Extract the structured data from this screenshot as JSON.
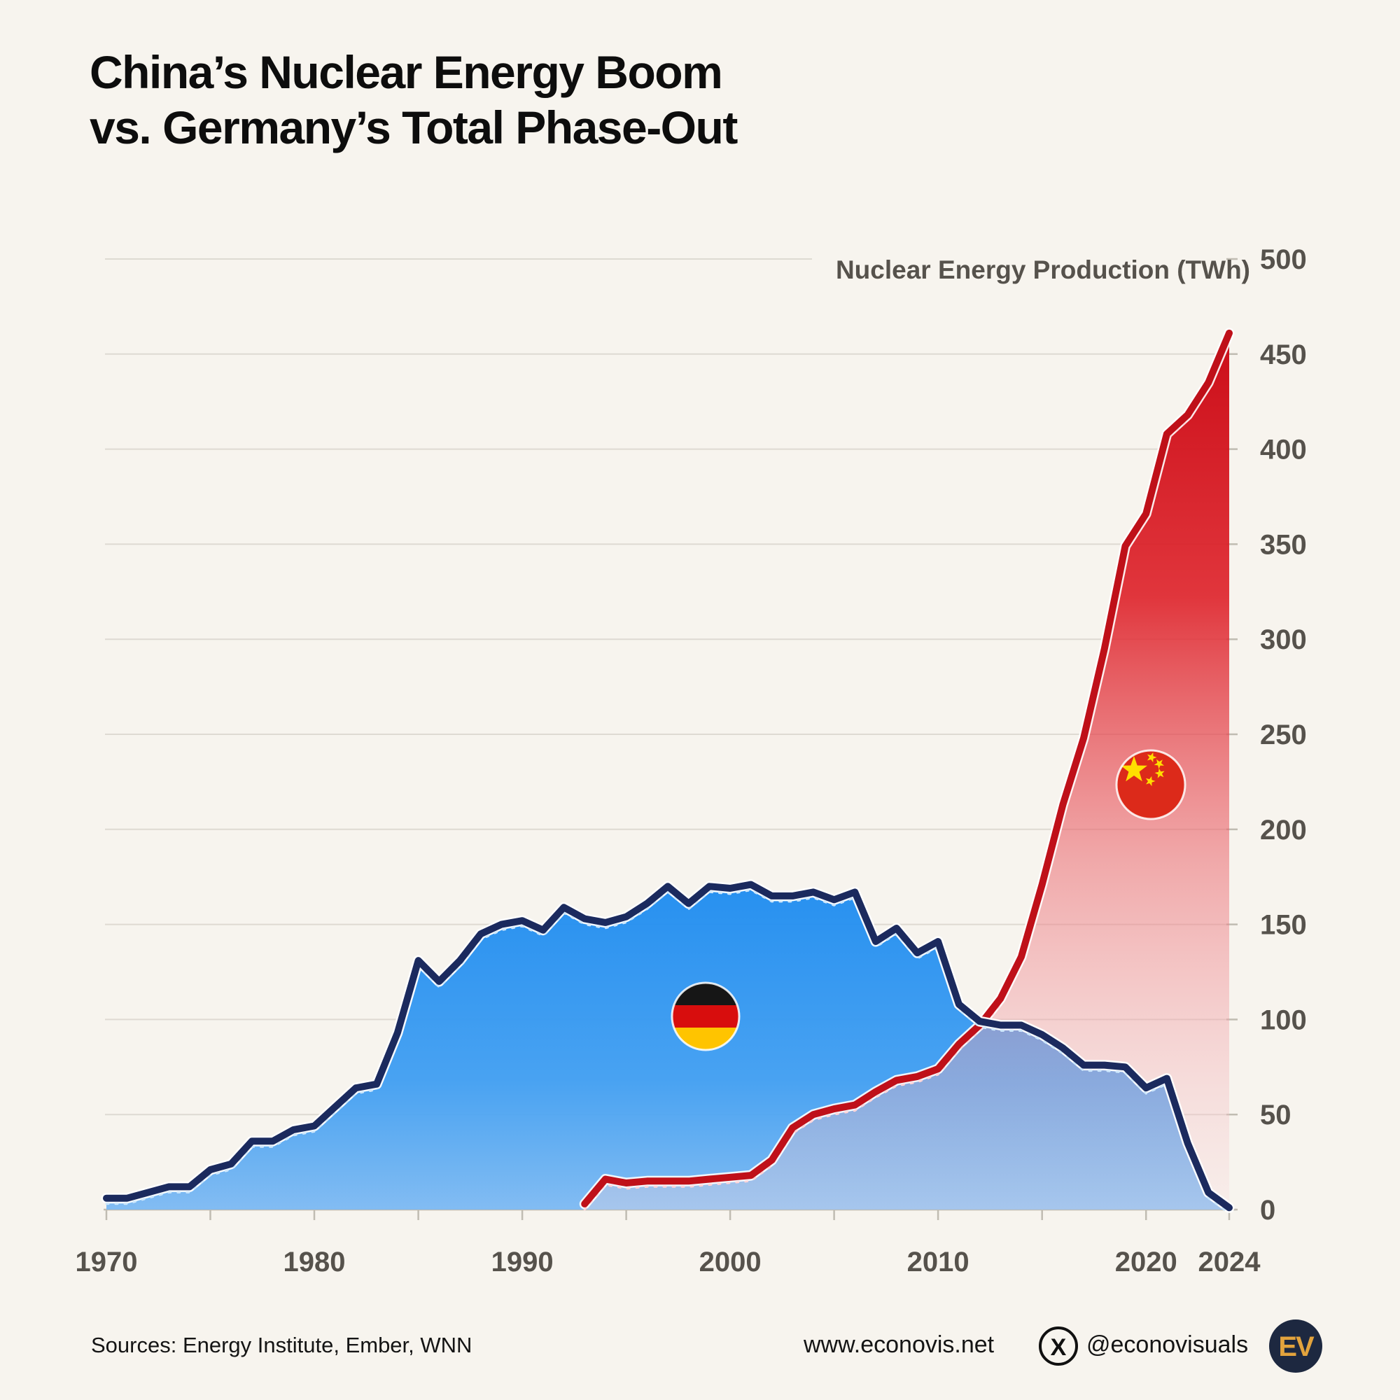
{
  "title": {
    "line1": "China’s Nuclear Energy Boom",
    "line2": "vs. Germany’s Total Phase-Out"
  },
  "footer": {
    "sources": "Sources: Energy Institute, Ember, WNN",
    "website": "www.econovis.net",
    "x_glyph": "X",
    "handle": "@econovisuals",
    "logo_text": "EV"
  },
  "colors": {
    "background": "#f7f4ee",
    "gridline": "#dedad2",
    "axis": "#c0bcb2",
    "tick_label": "#56524c",
    "germany_line": "#1b2a5e",
    "germany_fill_top": "#1e8cf0",
    "germany_fill_bottom": "#7cb9f3",
    "china_line": "#bf1019",
    "china_fill_top": "#cb0d18",
    "china_fill_bottom": "#f9dee0",
    "logo_badge": "#1d2840",
    "logo_gold": "#e2a33d"
  },
  "chart_data": {
    "type": "area",
    "title": "China’s Nuclear Energy Boom vs. Germany’s Total Phase-Out",
    "xlabel": "",
    "ylabel": "Nuclear Energy Production (TWh)",
    "xlim": [
      1970,
      2024
    ],
    "ylim": [
      0,
      500
    ],
    "yticks": [
      0,
      50,
      100,
      150,
      200,
      250,
      300,
      350,
      400,
      450,
      500
    ],
    "xtick_minor_step": 5,
    "xtick_labels": [
      1970,
      1980,
      1990,
      2000,
      2010,
      2020,
      2024
    ],
    "grid": "horizontal",
    "legend": "flag markers on areas",
    "series": [
      {
        "name": "Germany",
        "marker": "germany-flag",
        "start_year": 1970,
        "values": [
          6,
          6,
          9,
          12,
          12,
          21,
          24,
          36,
          36,
          42,
          44,
          54,
          64,
          66,
          93,
          131,
          120,
          131,
          145,
          150,
          152,
          147,
          159,
          153,
          151,
          154,
          161,
          170,
          161,
          170,
          169,
          171,
          165,
          165,
          167,
          163,
          167,
          141,
          148,
          135,
          141,
          108,
          99,
          97,
          97,
          92,
          85,
          76,
          76,
          75,
          64,
          69,
          35,
          9,
          1
        ]
      },
      {
        "name": "China",
        "marker": "china-flag",
        "start_year": 1993,
        "values": [
          3,
          16,
          14,
          15,
          15,
          15,
          16,
          17,
          18,
          26,
          43,
          50,
          53,
          55,
          62,
          68,
          70,
          74,
          87,
          97,
          111,
          133,
          171,
          213,
          248,
          295,
          349,
          366,
          408,
          418,
          435,
          461
        ]
      }
    ]
  }
}
